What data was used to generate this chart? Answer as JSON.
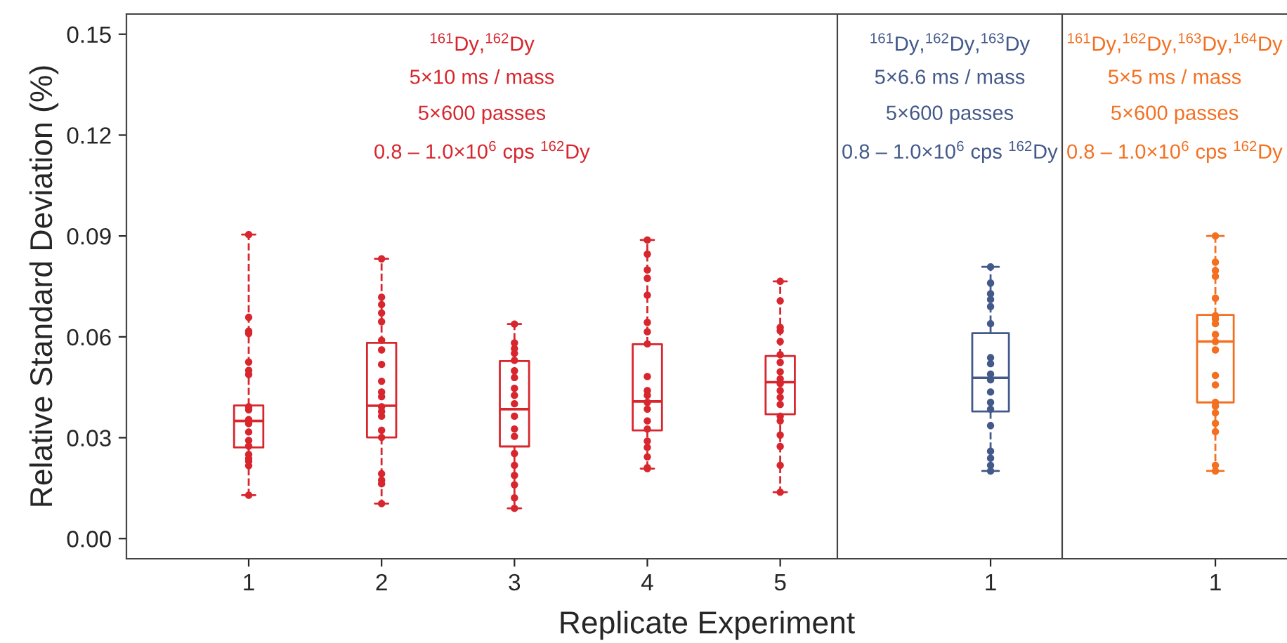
{
  "chart_data": [
    {
      "type": "box",
      "xlabel": "Replicate Experiment",
      "ylabel": "Relative Standard Deviation (%)",
      "categories": [
        "1",
        "2",
        "3",
        "4",
        "5"
      ],
      "ylim": [
        -0.006,
        0.156
      ],
      "yticks": [
        {
          "value": 0,
          "label": "0.00"
        },
        {
          "value": 0.03,
          "label": "0.03"
        },
        {
          "value": 0.06,
          "label": "0.06"
        },
        {
          "value": 0.09,
          "label": "0.09"
        },
        {
          "value": 0.12,
          "label": "0.12"
        },
        {
          "value": 0.15,
          "label": "0.15"
        }
      ],
      "grid": false,
      "legend": false,
      "line_style": "dashed",
      "marker": "circle",
      "series": [
        {
          "color": "#d7262d",
          "boxes": [
            {
              "low": 0.0129,
              "q1": 0.0271,
              "median": 0.035,
              "q3": 0.0396,
              "high": 0.0904
            },
            {
              "low": 0.0104,
              "q1": 0.0301,
              "median": 0.0395,
              "q3": 0.0582,
              "high": 0.0832
            },
            {
              "low": 0.009,
              "q1": 0.0274,
              "median": 0.0385,
              "q3": 0.0528,
              "high": 0.0638
            },
            {
              "low": 0.0208,
              "q1": 0.0322,
              "median": 0.0408,
              "q3": 0.0578,
              "high": 0.0888
            },
            {
              "low": 0.0138,
              "q1": 0.037,
              "median": 0.0465,
              "q3": 0.0543,
              "high": 0.0765
            }
          ]
        },
        {
          "type": "scatter",
          "color": "#d7262d",
          "x": [
            "1",
            "1",
            "1",
            "1",
            "1",
            "1",
            "1",
            "1",
            "1",
            "1",
            "1",
            "1",
            "1",
            "1",
            "1",
            "1",
            "1",
            "1",
            "1",
            "2",
            "2",
            "2",
            "2",
            "2",
            "2",
            "2",
            "2",
            "2",
            "2",
            "2",
            "2",
            "2",
            "2",
            "2",
            "2",
            "2",
            "2",
            "2",
            "2",
            "3",
            "3",
            "3",
            "3",
            "3",
            "3",
            "3",
            "3",
            "3",
            "3",
            "3",
            "3",
            "3",
            "3",
            "3",
            "3",
            "3",
            "3",
            "3",
            "4",
            "4",
            "4",
            "4",
            "4",
            "4",
            "4",
            "4",
            "4",
            "4",
            "4",
            "4",
            "4",
            "4",
            "4",
            "4",
            "4",
            "4",
            "4",
            "4",
            "5",
            "5",
            "5",
            "5",
            "5",
            "5",
            "5",
            "5",
            "5",
            "5",
            "5",
            "5",
            "5",
            "5",
            "5",
            "5",
            "5",
            "5",
            "5"
          ],
          "values": [
            0.0904,
            0.0658,
            0.0617,
            0.061,
            0.0525,
            0.05,
            0.0488,
            0.0392,
            0.0383,
            0.0354,
            0.0342,
            0.0317,
            0.0292,
            0.0275,
            0.025,
            0.0238,
            0.023,
            0.0217,
            0.0129,
            0.0832,
            0.0718,
            0.0696,
            0.0671,
            0.0645,
            0.059,
            0.0561,
            0.0518,
            0.0468,
            0.0436,
            0.0422,
            0.0392,
            0.0378,
            0.0364,
            0.0322,
            0.0301,
            0.0193,
            0.0174,
            0.0163,
            0.0104,
            0.0638,
            0.0582,
            0.0565,
            0.0551,
            0.053,
            0.0499,
            0.0479,
            0.0447,
            0.0426,
            0.0401,
            0.0364,
            0.0326,
            0.0304,
            0.0253,
            0.0218,
            0.0188,
            0.016,
            0.0121,
            0.009,
            0.0888,
            0.0846,
            0.0799,
            0.0774,
            0.0724,
            0.0643,
            0.0615,
            0.0579,
            0.0482,
            0.044,
            0.0426,
            0.0405,
            0.0385,
            0.035,
            0.0326,
            0.029,
            0.0271,
            0.0243,
            0.0211,
            0.0208,
            0.0765,
            0.0707,
            0.0628,
            0.0618,
            0.0586,
            0.0547,
            0.0524,
            0.0496,
            0.0475,
            0.0461,
            0.044,
            0.042,
            0.0399,
            0.0364,
            0.035,
            0.0308,
            0.0274,
            0.0218,
            0.0138
          ]
        }
      ],
      "annotations": [
        "$^{161}$Dy,$^{162}$Dy",
        "5×10 ms / mass",
        "5×600 passes",
        "0.8 – 1.0×10$^{6}$ cps $^{162}$Dy"
      ]
    },
    {
      "type": "box",
      "categories": [
        "1"
      ],
      "ylim": [
        -0.006,
        0.156
      ],
      "tick_labels": "x",
      "grid": false,
      "legend": false,
      "line_style": "dashed",
      "marker": "circle",
      "series": [
        {
          "color": "#43598a",
          "boxes": [
            {
              "low": 0.0201,
              "q1": 0.0378,
              "median": 0.0478,
              "q3": 0.0611,
              "high": 0.0808
            }
          ]
        },
        {
          "type": "scatter",
          "color": "#43598a",
          "x": [
            "1",
            "1",
            "1",
            "1",
            "1",
            "1",
            "1",
            "1",
            "1",
            "1",
            "1",
            "1",
            "1",
            "1",
            "1",
            "1",
            "1",
            "1"
          ],
          "values": [
            0.0808,
            0.076,
            0.0728,
            0.0711,
            0.069,
            0.0639,
            0.0538,
            0.052,
            0.0489,
            0.0472,
            0.0436,
            0.0405,
            0.0385,
            0.0336,
            0.026,
            0.0239,
            0.0218,
            0.0201
          ]
        }
      ],
      "annotations": [
        "$^{161}$Dy,$^{162}$Dy,$^{163}$Dy",
        "5×6.6 ms / mass",
        "5×600 passes",
        "0.8 – 1.0×10$^{6}$ cps $^{162}$Dy"
      ]
    },
    {
      "type": "box",
      "categories": [
        "1"
      ],
      "ylim": [
        -0.006,
        0.156
      ],
      "tick_labels": "x",
      "grid": false,
      "legend": false,
      "line_style": "dashed",
      "marker": "circle",
      "series": [
        {
          "color": "#f37021",
          "boxes": [
            {
              "low": 0.0201,
              "q1": 0.0405,
              "median": 0.0586,
              "q3": 0.0665,
              "high": 0.09
            }
          ]
        },
        {
          "type": "scatter",
          "color": "#f37021",
          "x": [
            "1",
            "1",
            "1",
            "1",
            "1",
            "1",
            "1",
            "1",
            "1",
            "1",
            "1",
            "1",
            "1",
            "1",
            "1",
            "1",
            "1",
            "1",
            "1",
            "1"
          ],
          "values": [
            0.09,
            0.0822,
            0.0797,
            0.078,
            0.0715,
            0.0663,
            0.0653,
            0.0639,
            0.0607,
            0.0586,
            0.0561,
            0.0485,
            0.0457,
            0.0405,
            0.0394,
            0.0374,
            0.0343,
            0.0318,
            0.0218,
            0.0201
          ]
        }
      ],
      "annotations": [
        "$^{161}$Dy,$^{162}$Dy,$^{163}$Dy,$^{164}$Dy",
        "5×5 ms / mass",
        "5×600 passes",
        "0.8 – 1.0×10$^{6}$ cps $^{162}$Dy"
      ]
    }
  ]
}
